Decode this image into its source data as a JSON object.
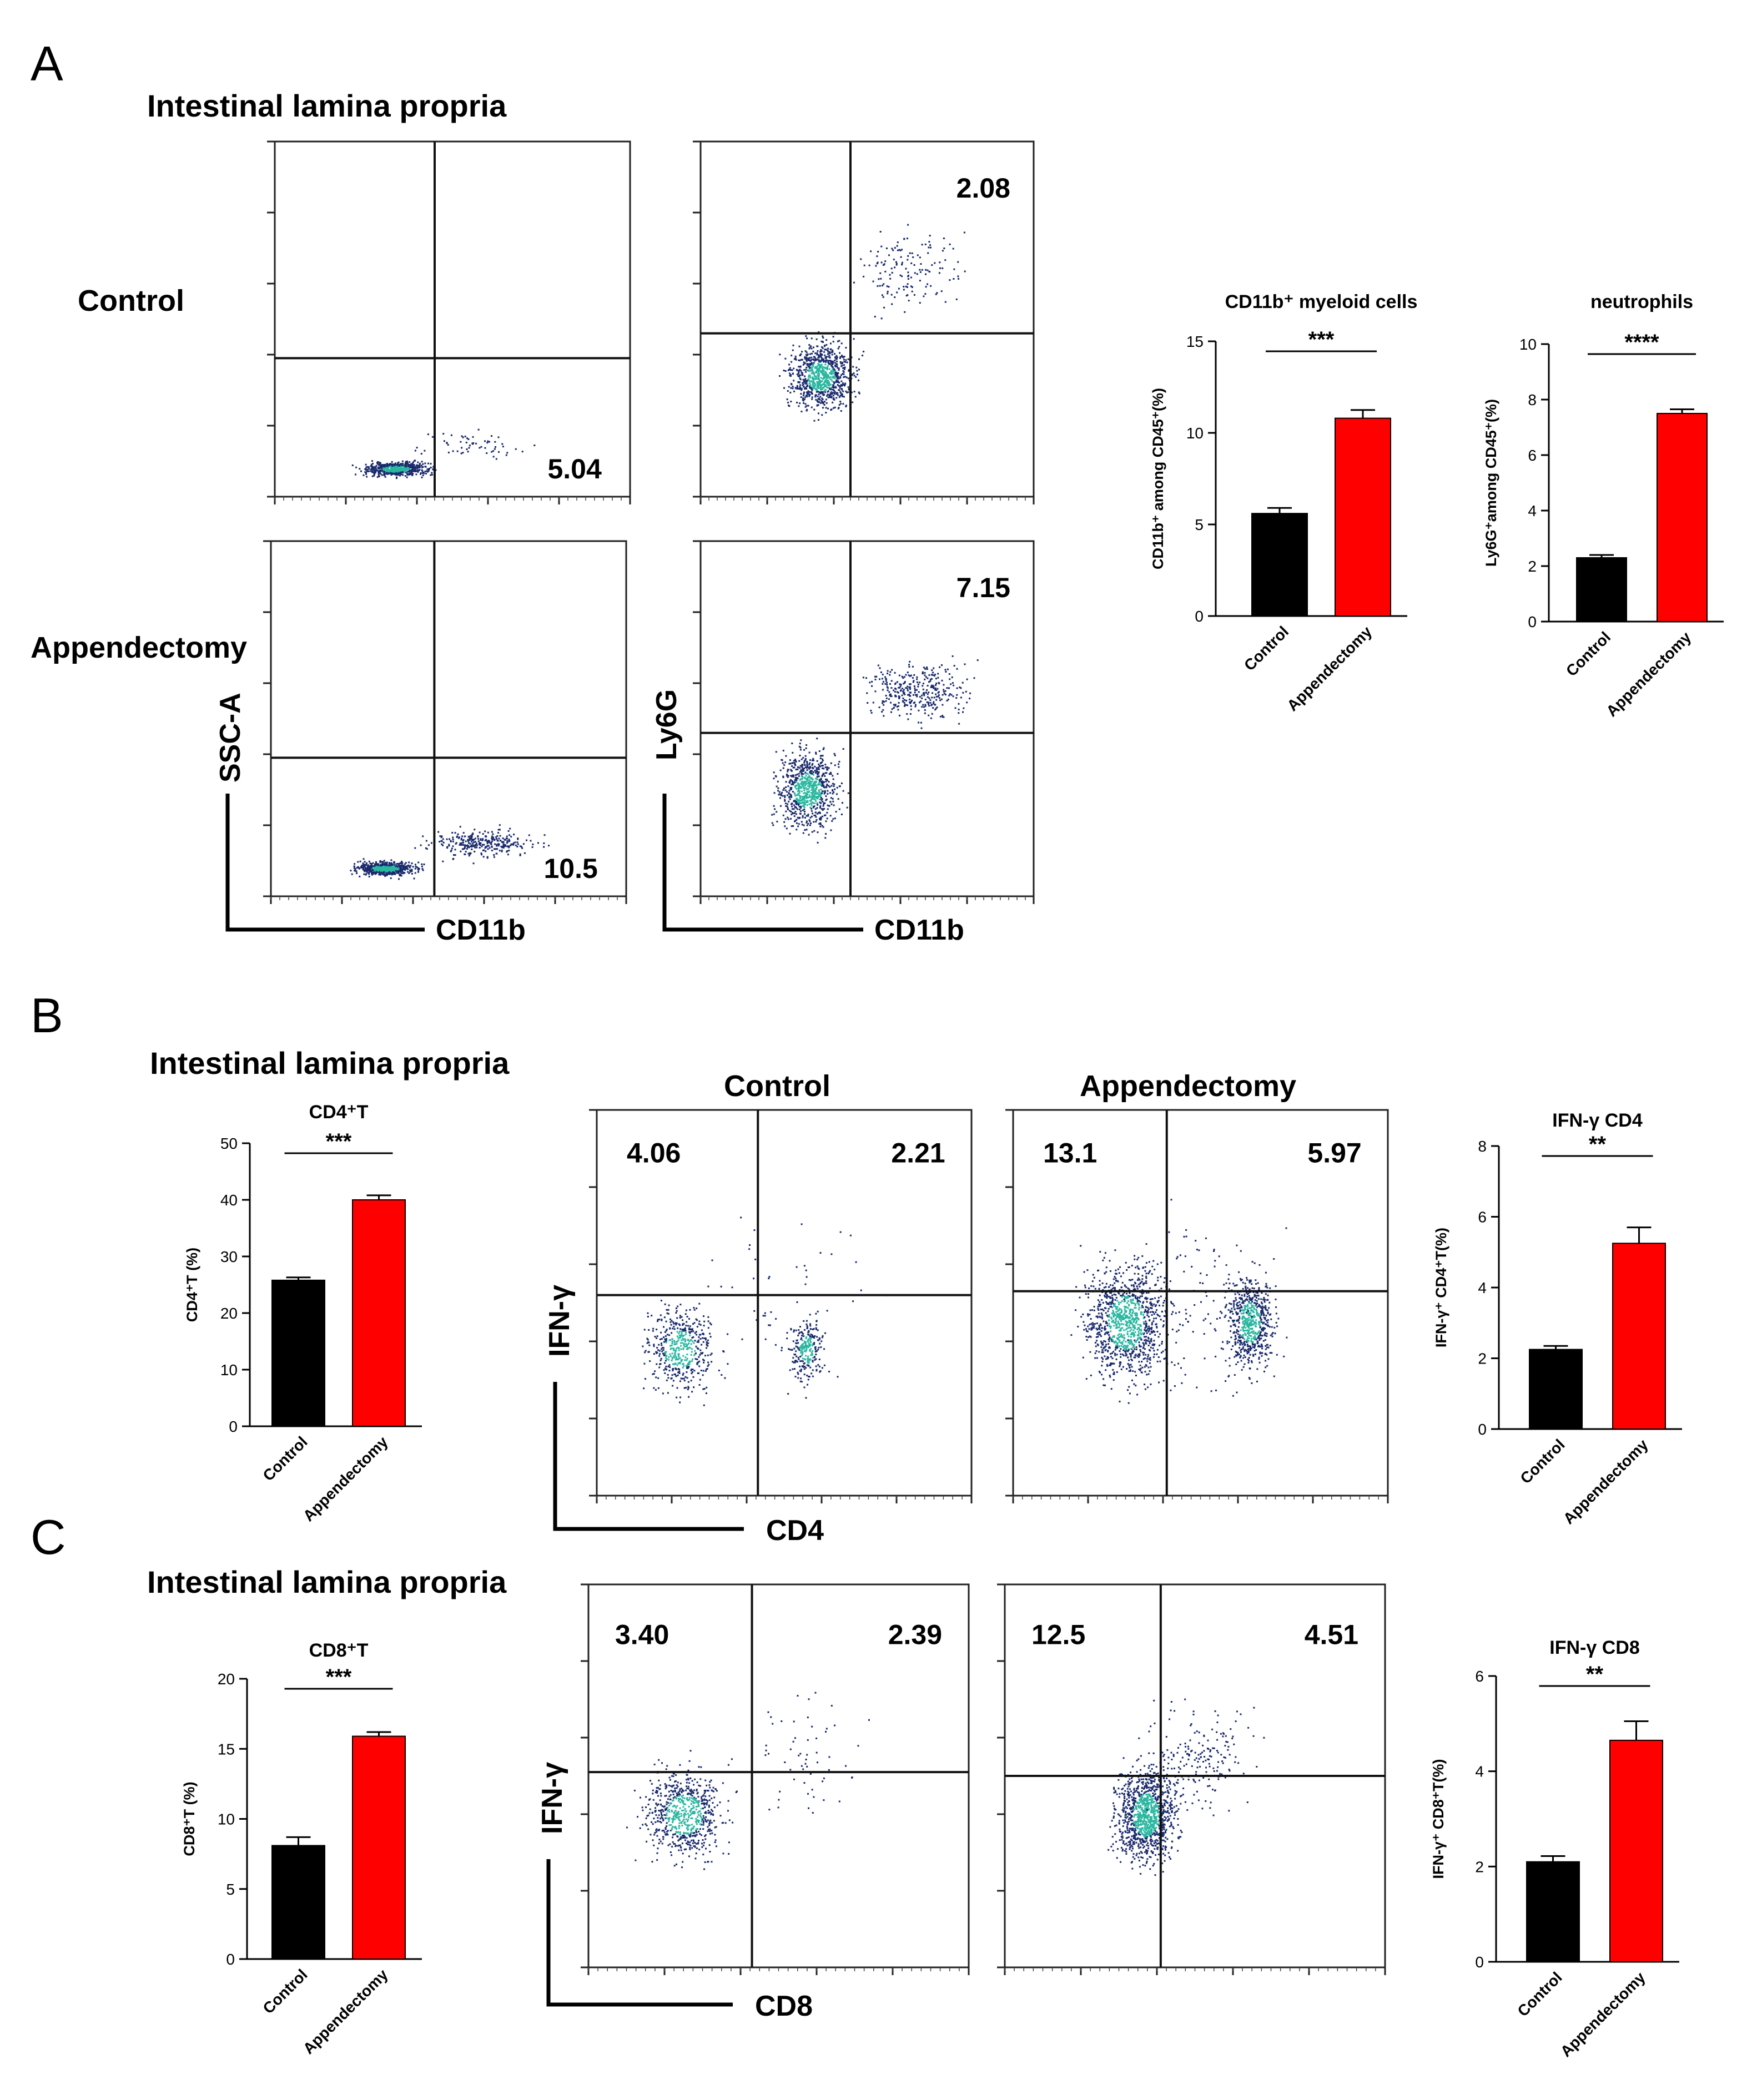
{
  "panel_labels": [
    "A",
    "B",
    "C"
  ],
  "tissue_title": "Intestinal lamina propria",
  "colors": {
    "black": "#000000",
    "red": "#ff0000",
    "dots": "#1a2a6c",
    "dense": "#2ab7a0"
  },
  "chart_data": [
    {
      "id": "A_flow",
      "type": "scatter",
      "panel": "A",
      "rows": [
        "Control",
        "Appendectomy"
      ],
      "plots": [
        {
          "row": "Control",
          "x_label": "CD11b",
          "y_label": "SSC-A",
          "quadrants": {
            "lower_right": "5.04"
          }
        },
        {
          "row": "Control",
          "x_label": "CD11b",
          "y_label": "Ly6G",
          "quadrants": {
            "upper_right": "2.08"
          }
        },
        {
          "row": "Appendectomy",
          "x_label": "CD11b",
          "y_label": "SSC-A",
          "quadrants": {
            "lower_right": "10.5"
          }
        },
        {
          "row": "Appendectomy",
          "x_label": "CD11b",
          "y_label": "Ly6G",
          "quadrants": {
            "upper_right": "7.15"
          }
        }
      ]
    },
    {
      "id": "A_bar_cd11b",
      "type": "bar",
      "panel": "A",
      "title": "CD11b⁺ myeloid cells",
      "ylabel": "CD11b⁺ among CD45⁺(%)",
      "categories": [
        "Control",
        "Appendectomy"
      ],
      "values": [
        5.6,
        10.8
      ],
      "errors": [
        0.3,
        0.45
      ],
      "ylim": [
        0,
        15
      ],
      "yticks": [
        0,
        5,
        10,
        15
      ],
      "significance": "***"
    },
    {
      "id": "A_bar_ly6g",
      "type": "bar",
      "panel": "A",
      "title": "neutrophils",
      "ylabel": "Ly6G⁺among CD45⁺(%)",
      "categories": [
        "Control",
        "Appendectomy"
      ],
      "values": [
        2.3,
        7.5
      ],
      "errors": [
        0.1,
        0.15
      ],
      "ylim": [
        0,
        10
      ],
      "yticks": [
        0,
        2,
        4,
        6,
        8,
        10
      ],
      "significance": "****"
    },
    {
      "id": "B_bar_cd4",
      "type": "bar",
      "panel": "B",
      "title": "CD4⁺T",
      "ylabel": "CD4⁺T (%)",
      "categories": [
        "Control",
        "Appendectomy"
      ],
      "values": [
        25.8,
        40.0
      ],
      "errors": [
        0.5,
        0.8
      ],
      "ylim": [
        0,
        50
      ],
      "yticks": [
        0,
        10,
        20,
        30,
        40,
        50
      ],
      "significance": "***"
    },
    {
      "id": "B_flow",
      "type": "scatter",
      "panel": "B",
      "x_label": "CD4",
      "y_label": "IFN-γ",
      "plots": [
        {
          "condition": "Control",
          "quadrants": {
            "upper_left": "4.06",
            "upper_right": "2.21"
          }
        },
        {
          "condition": "Appendectomy",
          "quadrants": {
            "upper_left": "13.1",
            "upper_right": "5.97"
          }
        }
      ]
    },
    {
      "id": "B_bar_ifn_cd4",
      "type": "bar",
      "panel": "B",
      "title": "IFN-γ CD4",
      "ylabel": "IFN-γ⁺ CD4⁺T(%)",
      "categories": [
        "Control",
        "Appendectomy"
      ],
      "values": [
        2.25,
        5.25
      ],
      "errors": [
        0.1,
        0.45
      ],
      "ylim": [
        0,
        8
      ],
      "yticks": [
        0,
        2,
        4,
        6,
        8
      ],
      "significance": "**"
    },
    {
      "id": "C_bar_cd8",
      "type": "bar",
      "panel": "C",
      "title": "CD8⁺T",
      "ylabel": "CD8⁺T (%)",
      "categories": [
        "Control",
        "Appendectomy"
      ],
      "values": [
        8.1,
        15.9
      ],
      "errors": [
        0.6,
        0.3
      ],
      "ylim": [
        0,
        20
      ],
      "yticks": [
        0,
        5,
        10,
        15,
        20
      ],
      "significance": "***"
    },
    {
      "id": "C_flow",
      "type": "scatter",
      "panel": "C",
      "x_label": "CD8",
      "y_label": "IFN-γ",
      "plots": [
        {
          "condition": "Control",
          "quadrants": {
            "upper_left": "3.40",
            "upper_right": "2.39"
          }
        },
        {
          "condition": "Appendectomy",
          "quadrants": {
            "upper_left": "12.5",
            "upper_right": "4.51"
          }
        }
      ]
    },
    {
      "id": "C_bar_ifn_cd8",
      "type": "bar",
      "panel": "C",
      "title": "IFN-γ CD8",
      "ylabel": "IFN-γ⁺ CD8⁺T(%)",
      "categories": [
        "Control",
        "Appendectomy"
      ],
      "values": [
        2.1,
        4.65
      ],
      "errors": [
        0.12,
        0.4
      ],
      "ylim": [
        0,
        6
      ],
      "yticks": [
        0,
        2,
        4,
        6
      ],
      "significance": "**"
    }
  ]
}
